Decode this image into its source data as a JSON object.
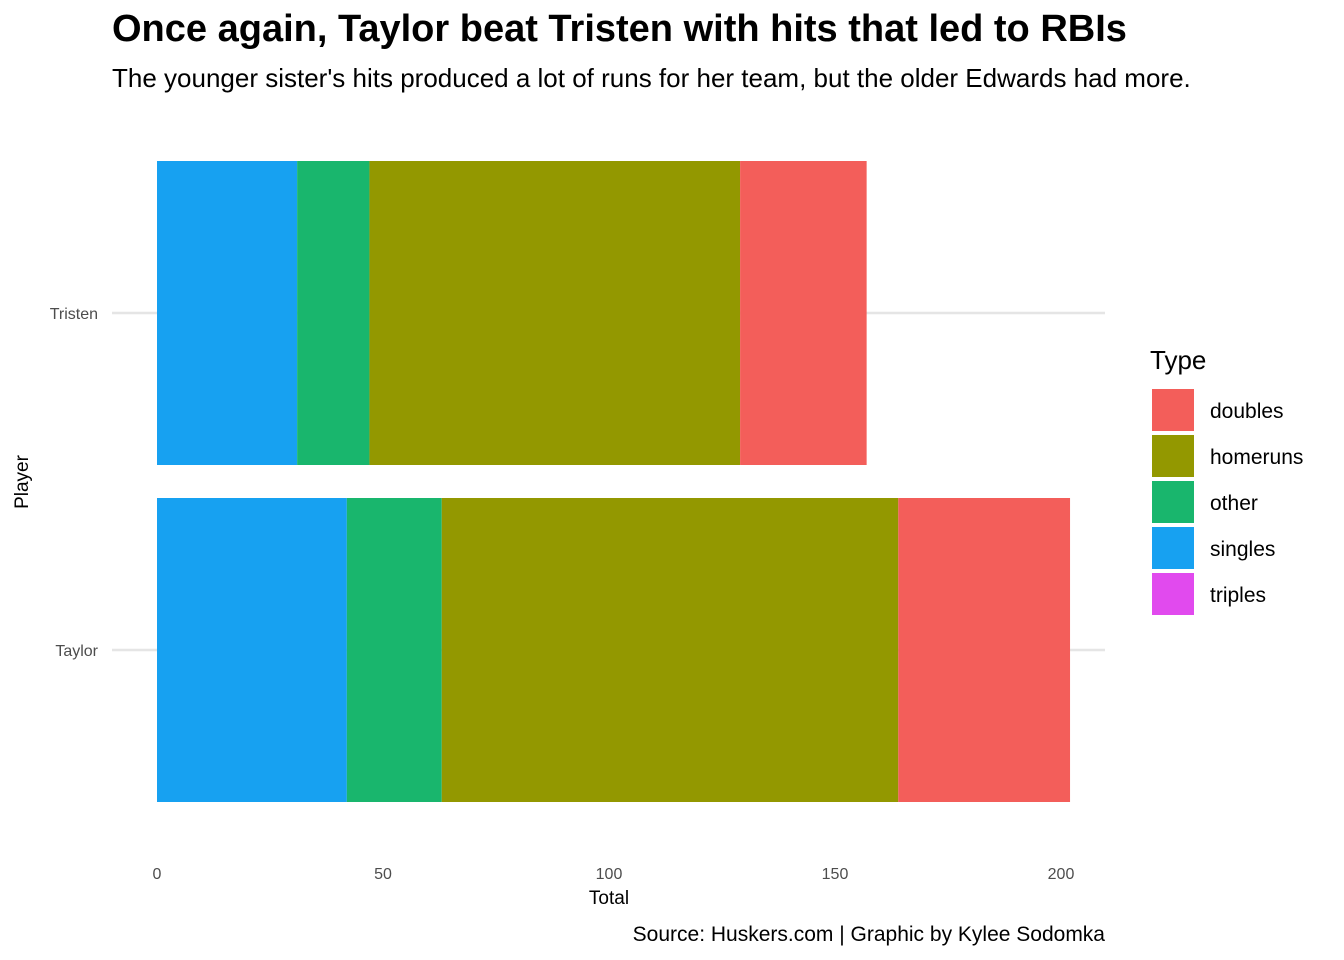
{
  "chart_data": {
    "type": "bar",
    "orientation": "horizontal",
    "stacked": true,
    "title": "Once again, Taylor beat Tristen with hits that led to RBIs",
    "subtitle": "The younger sister's hits produced a lot of runs for her team, but the older Edwards had more.",
    "xlabel": "Total",
    "ylabel": "Player",
    "caption": "Source: Huskers.com | Graphic by Kylee Sodomka",
    "categories": [
      "Tristen",
      "Taylor"
    ],
    "xlim": [
      0,
      210
    ],
    "xticks": [
      0,
      50,
      100,
      150,
      200
    ],
    "grid": "horizontal-major",
    "legend": {
      "title": "Type",
      "placement": "right",
      "entries": [
        "doubles",
        "homeruns",
        "other",
        "singles",
        "triples"
      ]
    },
    "stack_order": [
      "singles",
      "other",
      "homeruns",
      "doubles",
      "triples"
    ],
    "series": [
      {
        "name": "doubles",
        "color": "#F35E5A",
        "values": [
          28,
          38
        ]
      },
      {
        "name": "homeruns",
        "color": "#939800",
        "values": [
          82,
          101
        ]
      },
      {
        "name": "other",
        "color": "#19B66D",
        "values": [
          16,
          21
        ]
      },
      {
        "name": "singles",
        "color": "#17A1F1",
        "values": [
          31,
          42
        ]
      },
      {
        "name": "triples",
        "color": "#E14AEE",
        "values": [
          0,
          0
        ]
      }
    ]
  }
}
